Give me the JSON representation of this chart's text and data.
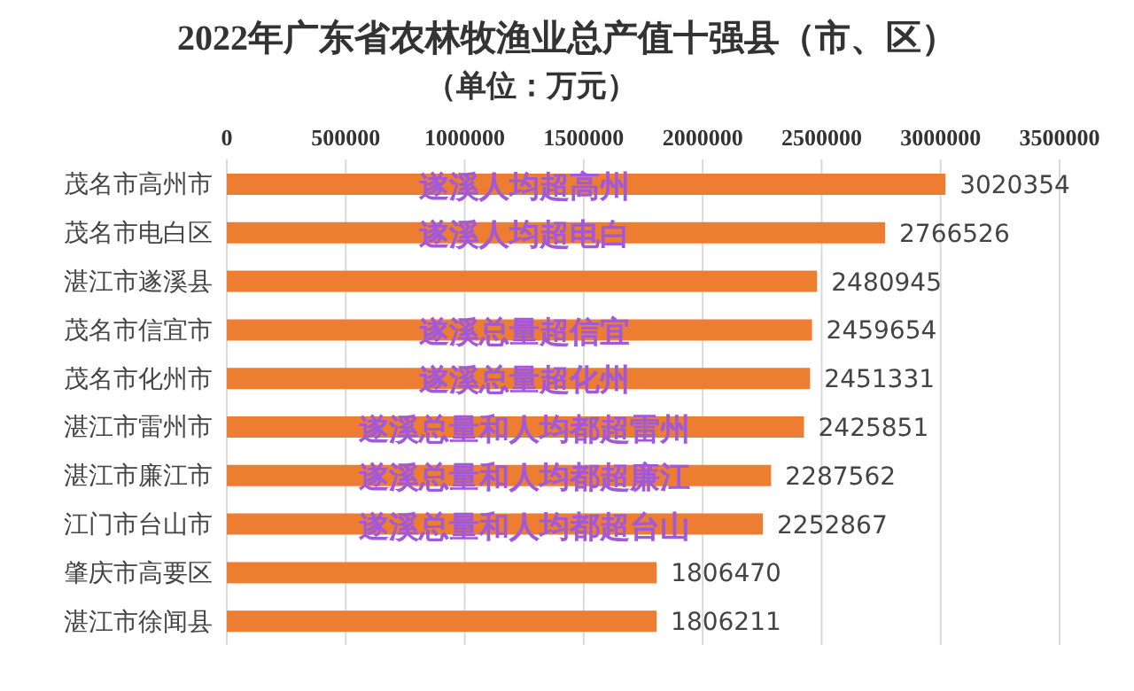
{
  "chart_data": {
    "type": "bar",
    "orientation": "horizontal",
    "title": "2022年广东省农林牧渔业总产值十强县（市、区）",
    "subtitle": "（单位：万元）",
    "categories": [
      "茂名市高州市",
      "茂名市电白区",
      "湛江市遂溪县",
      "茂名市信宜市",
      "茂名市化州市",
      "湛江市雷州市",
      "湛江市廉江市",
      "江门市台山市",
      "肇庆市高要区",
      "湛江市徐闻县"
    ],
    "values": [
      3020354,
      2766526,
      2480945,
      2459654,
      2451331,
      2425851,
      2287562,
      2252867,
      1806470,
      1806211
    ],
    "color": "#ed7d31",
    "data_labels": true,
    "xlim": [
      0,
      3500000
    ],
    "xticks": [
      0,
      500000,
      1000000,
      1500000,
      2000000,
      2500000,
      3000000,
      3500000
    ],
    "grid": "x",
    "legend": false,
    "annotations": [
      "遂溪人均超高州",
      "遂溪人均超电白",
      "遂溪总量超信宜",
      "遂溪总量超化州",
      "遂溪总量和人均都超雷州",
      "遂溪总量和人均都超廉江",
      "遂溪总量和人均都超台山"
    ]
  }
}
